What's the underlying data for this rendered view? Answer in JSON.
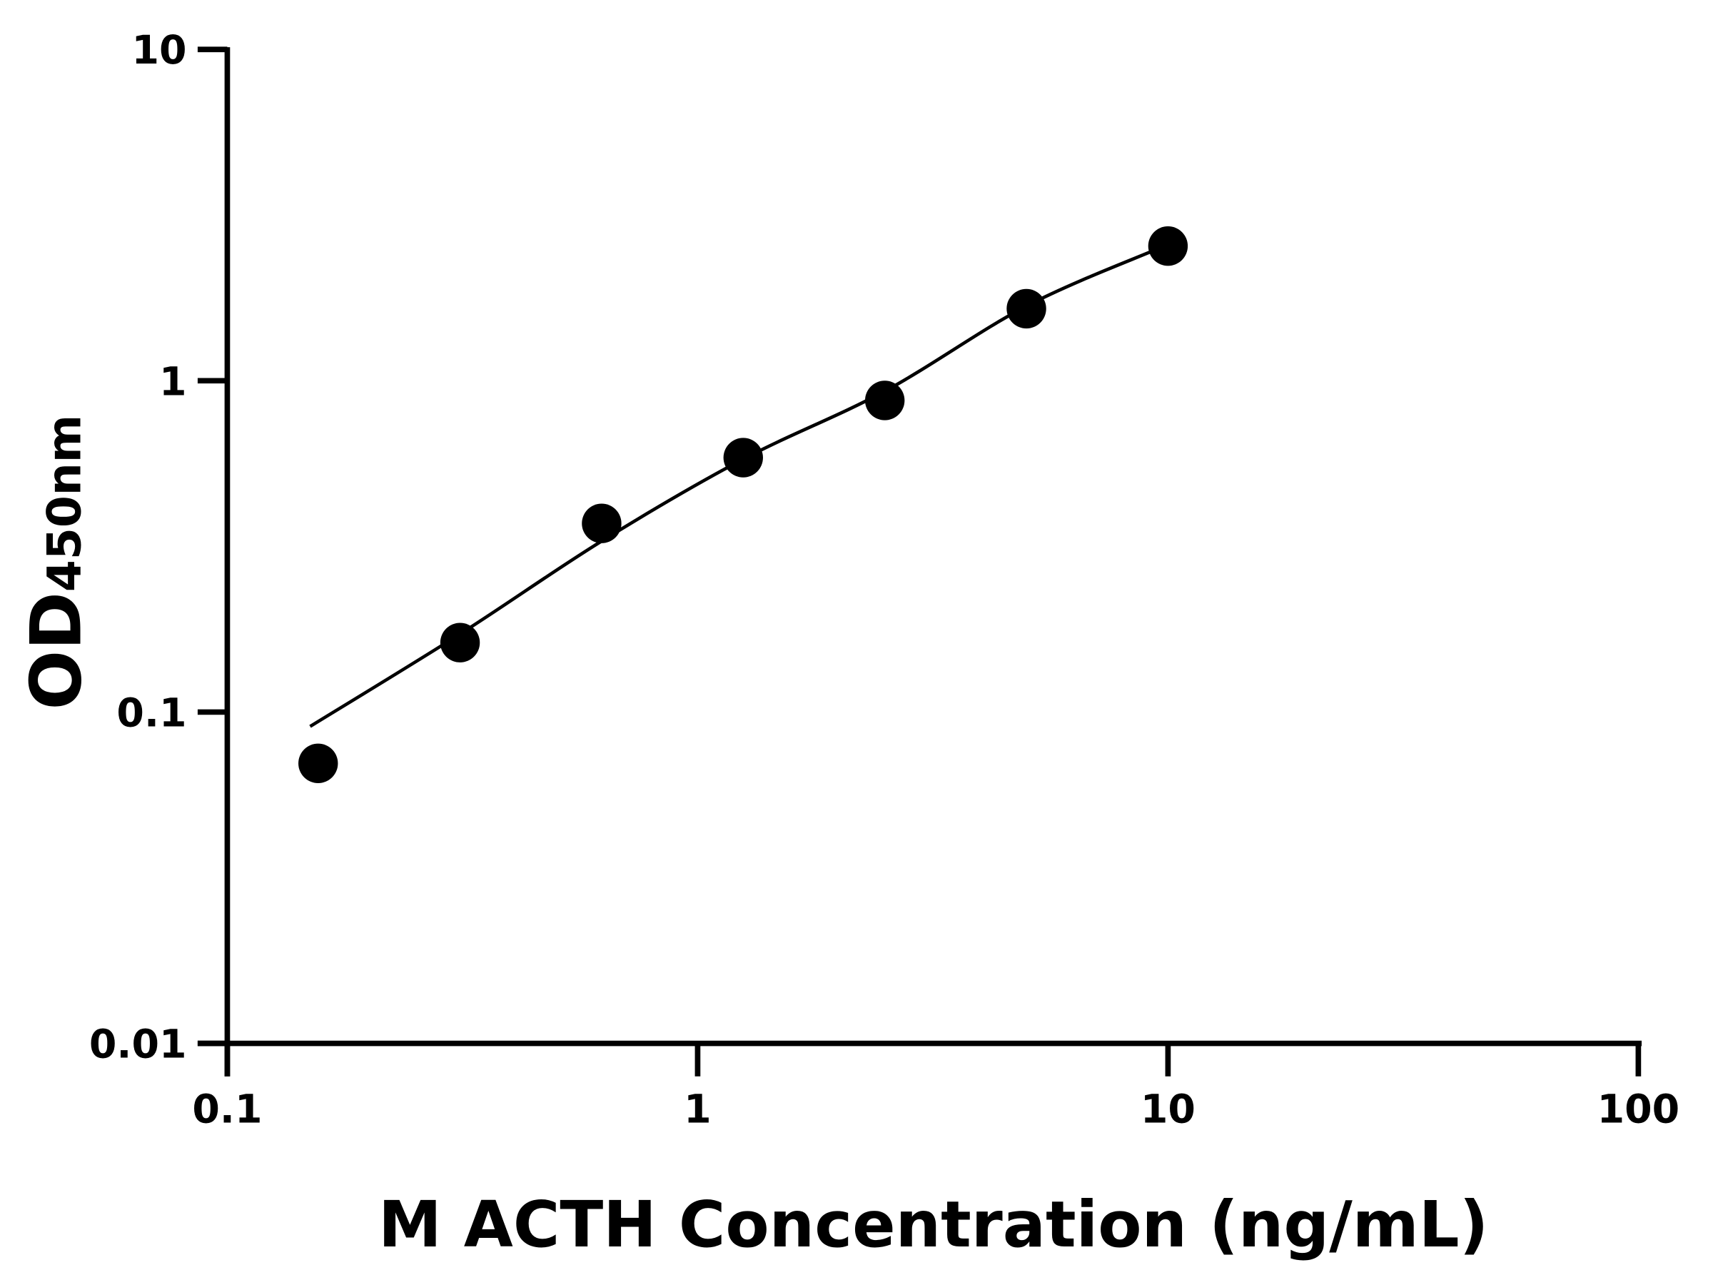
{
  "chart_data": {
    "type": "scatter",
    "title": "",
    "xlabel": "M ACTH Concentration (ng/mL)",
    "ylabel": {
      "main": "OD",
      "subscript": "450nm"
    },
    "xscale": "log",
    "yscale": "log",
    "xlim": [
      0.1,
      100
    ],
    "ylim": [
      0.01,
      10
    ],
    "xticks": [
      "0.1",
      "1",
      "10",
      "100"
    ],
    "yticks": [
      "0.01",
      "0.1",
      "1",
      "10"
    ],
    "grid": false,
    "points": [
      {
        "x": 0.156,
        "y": 0.07
      },
      {
        "x": 0.3125,
        "y": 0.162
      },
      {
        "x": 0.625,
        "y": 0.371
      },
      {
        "x": 1.25,
        "y": 0.586
      },
      {
        "x": 2.5,
        "y": 0.872
      },
      {
        "x": 5,
        "y": 1.65
      },
      {
        "x": 10,
        "y": 2.55
      }
    ],
    "fit_curve": [
      {
        "x": 0.15,
        "y": 0.0905
      },
      {
        "x": 0.3125,
        "y": 0.172
      },
      {
        "x": 0.625,
        "y": 0.328
      },
      {
        "x": 1.25,
        "y": 0.58
      },
      {
        "x": 2.5,
        "y": 0.93
      },
      {
        "x": 5,
        "y": 1.68
      },
      {
        "x": 9.5,
        "y": 2.5
      }
    ],
    "colors": {
      "points": "#000000",
      "line": "#000000"
    }
  }
}
